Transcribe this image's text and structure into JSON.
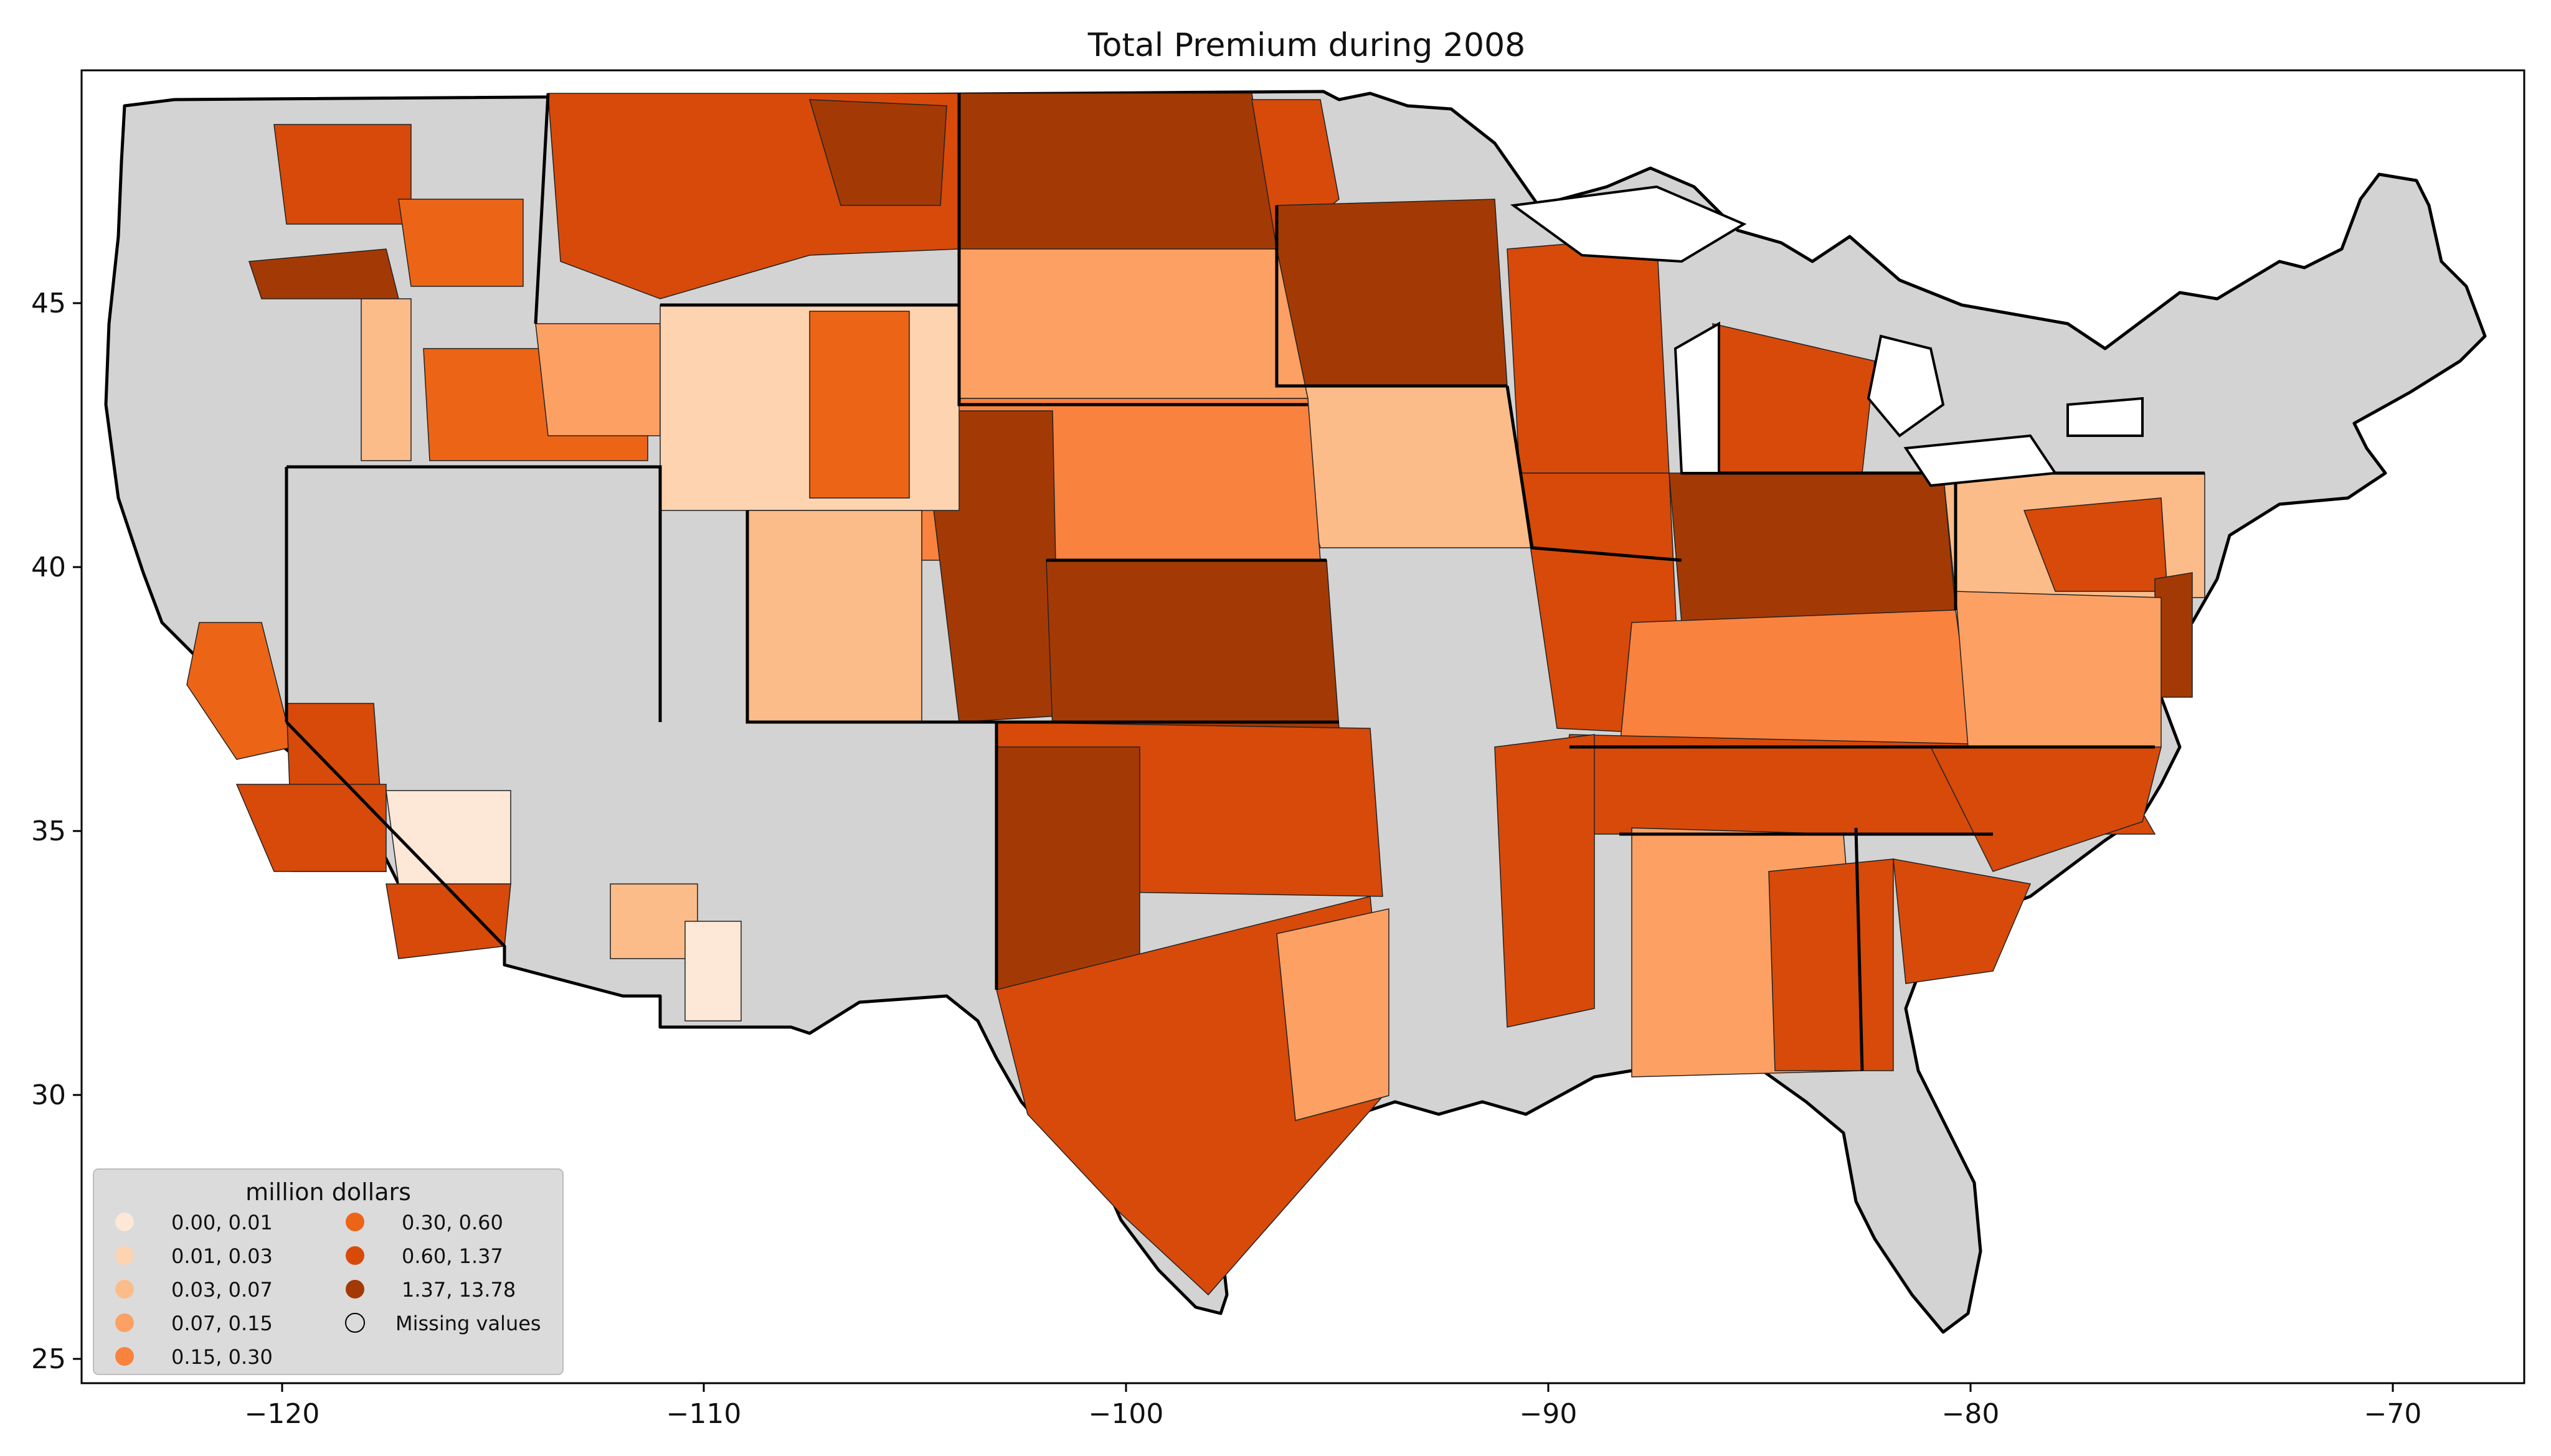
{
  "title": "Total  Premium during 2008",
  "axes": {
    "x_ticks": [
      "−120",
      "−110",
      "−100",
      "−90",
      "−80",
      "−70"
    ],
    "y_ticks": [
      "45",
      "40",
      "35",
      "30",
      "25"
    ]
  },
  "legend": {
    "title": "million dollars",
    "placement": "lower-left",
    "items": [
      {
        "label": "0.00,  0.01",
        "color": "#fde7d6"
      },
      {
        "label": "0.01,  0.03",
        "color": "#fdd3b0"
      },
      {
        "label": "0.03,  0.07",
        "color": "#fcbc89"
      },
      {
        "label": "0.07,  0.15",
        "color": "#fca163"
      },
      {
        "label": "0.15,  0.30",
        "color": "#f9823f"
      },
      {
        "label": "0.30,  0.60",
        "color": "#ec6516"
      },
      {
        "label": "0.60,  1.37",
        "color": "#d74a0a"
      },
      {
        "label": "1.37, 13.78",
        "color": "#a33a06"
      },
      {
        "label": "Missing values",
        "color": "#d3d3d3"
      }
    ]
  },
  "map": {
    "type": "choropleth",
    "region": "contiguous United States, county level",
    "missing_color": "#d3d3d3",
    "border_color": "#000000"
  }
}
